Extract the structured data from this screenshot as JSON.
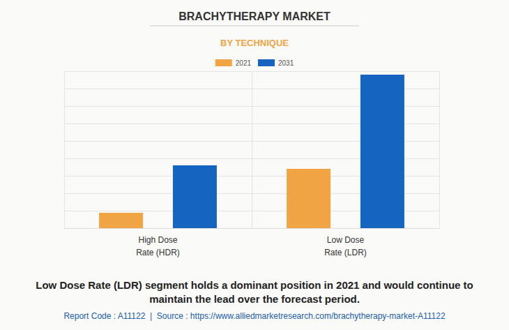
{
  "chart_data": {
    "type": "bar",
    "title": "BRACHYTHERAPY MARKET",
    "subtitle": "BY TECHNIQUE",
    "categories": [
      "High Dose\nRate (HDR)",
      "Low Dose\nRate (LDR)"
    ],
    "series": [
      {
        "name": "2021",
        "color": "#f0a444",
        "values": [
          0.88,
          3.4
        ]
      },
      {
        "name": "2031",
        "color": "#1565c0",
        "values": [
          3.6,
          8.8
        ]
      }
    ],
    "ylim": [
      0,
      9
    ],
    "yticks": [
      0,
      1,
      2,
      3,
      4,
      5,
      6,
      7,
      8,
      9
    ],
    "grid": true,
    "tick_labels": "x",
    "legend": "top",
    "caption": "Low Dose Rate (LDR) segment holds a dominant position in 2021 and would continue to\nmaintain the lead over the forecast period.",
    "source_note": "Report Code : A11122  |  Source : https://www.alliedmarketresearch.com/brachytherapy-market-A11122"
  }
}
